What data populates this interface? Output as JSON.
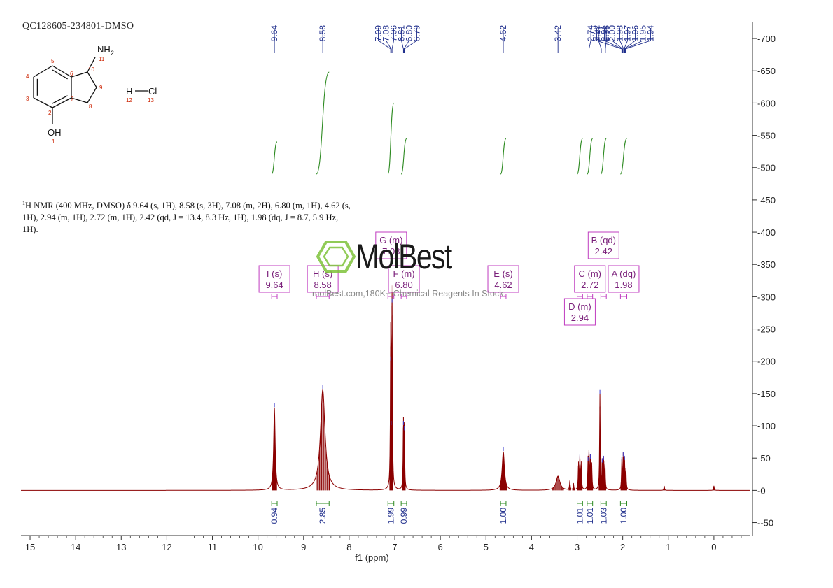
{
  "sample_id": "QC128605-234801-DMSO",
  "nmr_description": {
    "nucleus_sup": "1",
    "text": "H NMR (400 MHz, DMSO) δ 9.64 (s, 1H), 8.58 (s, 3H), 7.08 (m, 2H), 6.80 (m, 1H), 4.62 (s, 1H), 2.94 (m, 1H), 2.72 (m, 1H), 2.42 (qd, J = 13.4, 8.3 Hz, 1H), 1.98 (dq, J = 8.7, 5.9 Hz, 1H)."
  },
  "watermark": {
    "logo_text": "MolBest",
    "tagline": "molBest.com,180K+ Chemical Reagents In Stock."
  },
  "colors": {
    "spectrum": "#8b0000",
    "integral_curve": "#2e8b22",
    "peak_label": "#1f2e8c",
    "multiplet_box": "#c03cc0",
    "multiplet_text": "#7a1f7a",
    "integral_label": "#1f2e8c",
    "integral_bracket": "#2e8b22",
    "axis": "#333333",
    "structure_number": "#cc2200",
    "watermark_green": "#7ec23a"
  },
  "structure": {
    "atoms": [
      {
        "label": "NH",
        "sub": "2",
        "num": "11"
      },
      {
        "label": "OH",
        "num": "1"
      },
      {
        "label": "H",
        "num": "12"
      },
      {
        "label": "Cl",
        "num": "13"
      }
    ],
    "ring_numbers": [
      "2",
      "3",
      "4",
      "5",
      "6",
      "7",
      "8",
      "9",
      "10"
    ]
  },
  "chart_data": {
    "type": "line",
    "title": "",
    "xlabel": "f1 (ppm)",
    "ylabel": "",
    "xlim": [
      15.2,
      -0.8
    ],
    "ylim": [
      -70,
      725
    ],
    "x_reversed": true,
    "x_ticks": [
      15,
      14,
      13,
      12,
      11,
      10,
      9,
      8,
      7,
      6,
      5,
      4,
      3,
      2,
      1,
      0
    ],
    "y_ticks": [
      -50,
      0,
      50,
      100,
      150,
      200,
      250,
      300,
      350,
      400,
      450,
      500,
      550,
      600,
      650,
      700
    ],
    "series": [
      {
        "peaks": [
          {
            "x": 9.64,
            "height": 128,
            "width": 0.02
          },
          {
            "x": 8.58,
            "height": 156,
            "width": 0.06
          },
          {
            "x": 7.09,
            "height": 200,
            "width": 0.008
          },
          {
            "x": 7.06,
            "height": 290,
            "width": 0.008
          },
          {
            "x": 7.08,
            "height": 100,
            "width": 0.008
          },
          {
            "x": 6.81,
            "height": 100,
            "width": 0.008
          },
          {
            "x": 6.79,
            "height": 92,
            "width": 0.008
          },
          {
            "x": 4.62,
            "height": 60,
            "width": 0.03
          },
          {
            "x": 3.42,
            "height": 22,
            "width": 0.05
          },
          {
            "x": 3.16,
            "height": 14,
            "width": 0.008
          },
          {
            "x": 3.08,
            "height": 10,
            "width": 0.008
          },
          {
            "x": 2.97,
            "height": 40,
            "width": 0.008
          },
          {
            "x": 2.94,
            "height": 48,
            "width": 0.008
          },
          {
            "x": 2.91,
            "height": 40,
            "width": 0.008
          },
          {
            "x": 2.76,
            "height": 44,
            "width": 0.008
          },
          {
            "x": 2.74,
            "height": 52,
            "width": 0.008
          },
          {
            "x": 2.71,
            "height": 48,
            "width": 0.008
          },
          {
            "x": 2.68,
            "height": 38,
            "width": 0.008
          },
          {
            "x": 2.5,
            "height": 148,
            "width": 0.008
          },
          {
            "x": 2.45,
            "height": 42,
            "width": 0.008
          },
          {
            "x": 2.42,
            "height": 46,
            "width": 0.008
          },
          {
            "x": 2.39,
            "height": 40,
            "width": 0.008
          },
          {
            "x": 2.02,
            "height": 44,
            "width": 0.008
          },
          {
            "x": 1.99,
            "height": 52,
            "width": 0.008
          },
          {
            "x": 1.96,
            "height": 46,
            "width": 0.008
          },
          {
            "x": 1.93,
            "height": 30,
            "width": 0.008
          },
          {
            "x": 1.09,
            "height": 7,
            "width": 0.008
          },
          {
            "x": 0.0,
            "height": 7,
            "width": 0.008
          }
        ]
      }
    ],
    "peak_labels": [
      {
        "group": [
          9.64
        ],
        "labels": [
          "9.64"
        ]
      },
      {
        "group": [
          8.58
        ],
        "labels": [
          "8.58"
        ]
      },
      {
        "group": [
          7.09,
          7.08,
          7.06,
          6.81,
          6.8,
          6.79
        ],
        "labels": [
          "7.09",
          "7.08",
          "7.06",
          "6.81",
          "6.80",
          "6.79"
        ]
      },
      {
        "group": [
          4.62
        ],
        "labels": [
          "4.62"
        ]
      },
      {
        "group": [
          3.42
        ],
        "labels": [
          "3.42"
        ]
      },
      {
        "group": [
          2.74,
          2.47,
          2.38
        ],
        "labels": [
          "2.74",
          "2.47",
          "2.38"
        ]
      },
      {
        "group": [
          2.02,
          2.01,
          2.0,
          1.98,
          1.97,
          1.96,
          1.95,
          1.94
        ],
        "labels": [
          "2.02",
          "2.01",
          "2.00",
          "1.98",
          "1.97",
          "1.96",
          "1.95",
          "1.94"
        ]
      }
    ],
    "integrals": [
      {
        "from": 9.7,
        "to": 9.58,
        "value": "0.94",
        "curve_start": 490,
        "curve_end": 540
      },
      {
        "from": 8.72,
        "to": 8.44,
        "value": "2.85",
        "curve_start": 490,
        "curve_end": 648
      },
      {
        "from": 7.15,
        "to": 7.02,
        "value": "1.99",
        "curve_start": 490,
        "curve_end": 600
      },
      {
        "from": 6.86,
        "to": 6.74,
        "value": "0.99",
        "curve_start": 490,
        "curve_end": 545
      },
      {
        "from": 4.68,
        "to": 4.56,
        "value": "1.00",
        "curve_start": 490,
        "curve_end": 545
      },
      {
        "from": 3.0,
        "to": 2.88,
        "value": "1.01",
        "curve_start": 490,
        "curve_end": 545
      },
      {
        "from": 2.78,
        "to": 2.66,
        "value": "1.01",
        "curve_start": 490,
        "curve_end": 545
      },
      {
        "from": 2.48,
        "to": 2.36,
        "value": "1.03",
        "curve_start": 490,
        "curve_end": 545
      },
      {
        "from": 2.05,
        "to": 1.91,
        "value": "1.00",
        "curve_start": 490,
        "curve_end": 545
      }
    ],
    "multiplets": [
      {
        "name": "I (s)",
        "shift": "9.64",
        "x": 9.64,
        "row": 1,
        "range": [
          9.7,
          9.58
        ]
      },
      {
        "name": "H (s)",
        "shift": "8.58",
        "x": 8.58,
        "row": 1,
        "range": [
          8.72,
          8.44
        ]
      },
      {
        "name": "G (m)",
        "shift": "7.08",
        "x": 7.08,
        "row": 0,
        "range": [
          7.15,
          7.02
        ]
      },
      {
        "name": "F (m)",
        "shift": "6.80",
        "x": 6.8,
        "row": 1,
        "range": [
          6.86,
          6.74
        ]
      },
      {
        "name": "E (s)",
        "shift": "4.62",
        "x": 4.62,
        "row": 1,
        "range": [
          4.68,
          4.56
        ]
      },
      {
        "name": "B (qd)",
        "shift": "2.42",
        "x": 2.42,
        "row": 0,
        "range": [
          2.48,
          2.36
        ]
      },
      {
        "name": "C (m)",
        "shift": "2.72",
        "x": 2.72,
        "row": 1,
        "range": [
          2.78,
          2.66
        ]
      },
      {
        "name": "A (dq)",
        "shift": "1.98",
        "x": 1.98,
        "row": 1,
        "range": [
          2.05,
          1.91
        ]
      },
      {
        "name": "D (m)",
        "shift": "2.94",
        "x": 2.94,
        "row": 2,
        "range": [
          3.0,
          2.88
        ]
      }
    ]
  }
}
